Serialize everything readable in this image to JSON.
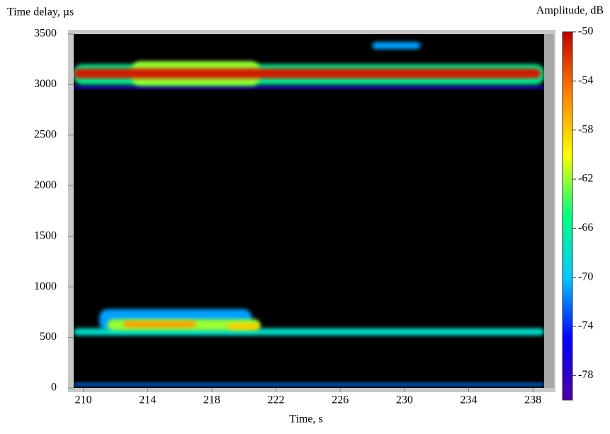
{
  "chart_data": {
    "type": "heatmap",
    "y_label": "Time delay, µs",
    "x_label": "Time, s",
    "colorbar_label": "Amplitude, dB",
    "xlim": [
      209.4,
      238.7
    ],
    "xticks": [
      210,
      214,
      218,
      222,
      226,
      230,
      234,
      238
    ],
    "ylim": [
      0,
      3500
    ],
    "yticks": [
      0,
      500,
      1000,
      1500,
      2000,
      2500,
      3000,
      3500
    ],
    "clim": [
      -80,
      -50
    ],
    "cticks": [
      -50,
      -54,
      -58,
      -62,
      -66,
      -70,
      -74,
      -78
    ],
    "colormap": [
      "#5000a0",
      "#0000ff",
      "#00c8ff",
      "#00ff80",
      "#ffff00",
      "#ff8000",
      "#c00000"
    ],
    "background": "#000000",
    "features": [
      {
        "time": [
          209.4,
          238.7
        ],
        "delay": [
          2960,
          2990
        ],
        "amplitude": -77
      },
      {
        "time": [
          209.4,
          238.7
        ],
        "delay": [
          3000,
          3200
        ],
        "amplitude": -66
      },
      {
        "time": [
          213,
          221
        ],
        "delay": [
          2990,
          3230
        ],
        "amplitude": -62
      },
      {
        "time": [
          209.4,
          238.5
        ],
        "delay": [
          3060,
          3160
        ],
        "amplitude": -51
      },
      {
        "time": [
          211,
          220.5
        ],
        "delay": [
          560,
          780
        ],
        "amplitude": -71
      },
      {
        "time": [
          209.4,
          238.7
        ],
        "delay": [
          520,
          590
        ],
        "amplitude": -68
      },
      {
        "time": [
          211.5,
          221
        ],
        "delay": [
          570,
          680
        ],
        "amplitude": -62
      },
      {
        "time": [
          212.5,
          217
        ],
        "delay": [
          600,
          660
        ],
        "amplitude": -56
      },
      {
        "time": [
          219,
          221
        ],
        "delay": [
          580,
          640
        ],
        "amplitude": -58
      },
      {
        "time": [
          209.4,
          238.7
        ],
        "delay": [
          20,
          50
        ],
        "amplitude": -72
      },
      {
        "time": [
          228,
          231
        ],
        "delay": [
          3350,
          3420
        ],
        "amplitude": -71
      }
    ]
  }
}
